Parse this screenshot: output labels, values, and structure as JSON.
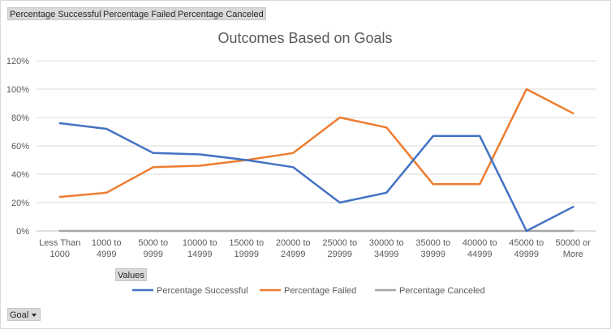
{
  "filter_buttons": [
    {
      "label": "Percentage Successful"
    },
    {
      "label": "Percentage Failed"
    },
    {
      "label": "Percentage Canceled"
    }
  ],
  "values_button": {
    "label": "Values"
  },
  "goal_button": {
    "label": "Goal",
    "icon": "dropdown-arrow-icon"
  },
  "chart_data": {
    "type": "line",
    "title": "Outcomes Based on Goals",
    "xlabel": "",
    "ylabel": "",
    "categories": [
      [
        "Less Than",
        "1000"
      ],
      [
        "1000 to",
        "4999"
      ],
      [
        "5000 to",
        "9999"
      ],
      [
        "10000 to",
        "14999"
      ],
      [
        "15000 to",
        "19999"
      ],
      [
        "20000 to",
        "24999"
      ],
      [
        "25000 to",
        "29999"
      ],
      [
        "30000 to",
        "34999"
      ],
      [
        "35000 to",
        "39999"
      ],
      [
        "40000 to",
        "44999"
      ],
      [
        "45000 to",
        "49999"
      ],
      [
        "50000 or",
        "More"
      ]
    ],
    "ylim": [
      0,
      120
    ],
    "yticks": [
      0,
      20,
      40,
      60,
      80,
      100,
      120
    ],
    "ytick_labels": [
      "0%",
      "20%",
      "40%",
      "60%",
      "80%",
      "100%",
      "120%"
    ],
    "grid": true,
    "legend_position": "bottom",
    "series": [
      {
        "name": "Percentage Successful",
        "color": "#4472c4",
        "values": [
          76,
          72,
          55,
          54,
          50,
          45,
          20,
          27,
          67,
          67,
          0,
          17
        ]
      },
      {
        "name": "Percentage Failed",
        "color": "#ed7d31",
        "values": [
          24,
          27,
          45,
          46,
          50,
          55,
          80,
          73,
          33,
          33,
          100,
          83
        ]
      },
      {
        "name": "Percentage Canceled",
        "color": "#a5a5a5",
        "values": [
          0,
          0,
          0,
          0,
          0,
          0,
          0,
          0,
          0,
          0,
          0,
          0
        ]
      }
    ]
  }
}
